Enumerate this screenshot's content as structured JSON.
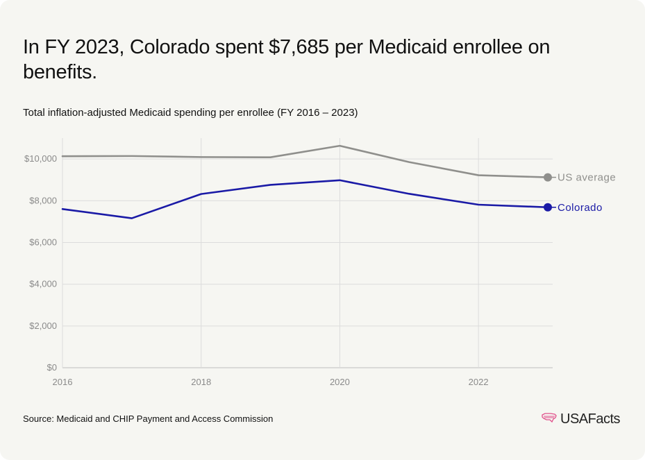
{
  "title": "In FY 2023, Colorado spent $7,685 per Medicaid enrollee on benefits.",
  "subtitle": "Total inflation-adjusted Medicaid spending per enrollee (FY 2016 – 2023)",
  "source": "Source: Medicaid and CHIP Payment and Access Commission",
  "logo_text": "USAFacts",
  "logo_icon": "us-map-icon",
  "chart_data": {
    "type": "line",
    "x": [
      2016,
      2017,
      2018,
      2019,
      2020,
      2021,
      2022,
      2023
    ],
    "x_ticks": [
      2016,
      2018,
      2020,
      2022
    ],
    "x_tick_labels": [
      "2016",
      "2018",
      "2020",
      "2022"
    ],
    "y_ticks": [
      0,
      2000,
      4000,
      6000,
      8000,
      10000
    ],
    "y_tick_labels": [
      "$0",
      "$2,000",
      "$4,000",
      "$6,000",
      "$8,000",
      "$10,000"
    ],
    "xlim": [
      2016,
      2023
    ],
    "ylim": [
      0,
      11000
    ],
    "grid": true,
    "legend": "direct labels at line ends (right)",
    "series": [
      {
        "name": "US average",
        "color": "#8f8f8c",
        "values": [
          10130,
          10140,
          10090,
          10080,
          10630,
          9850,
          9220,
          9120
        ]
      },
      {
        "name": "Colorado",
        "color": "#1a1aa6",
        "values": [
          7600,
          7160,
          8320,
          8760,
          8980,
          8330,
          7810,
          7685
        ]
      }
    ]
  }
}
